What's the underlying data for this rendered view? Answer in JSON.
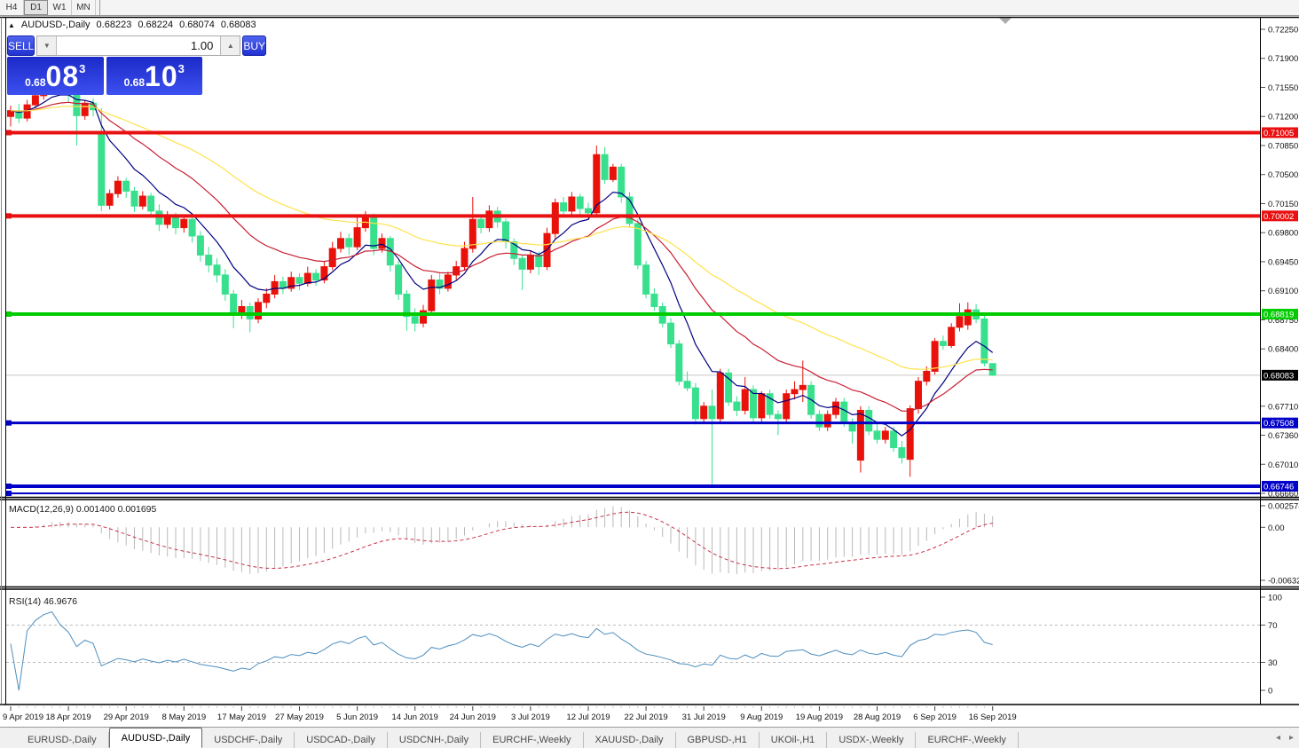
{
  "toolbar": {
    "timeframes": [
      {
        "label": "H4",
        "active": false
      },
      {
        "label": "D1",
        "active": true
      },
      {
        "label": "W1",
        "active": false
      },
      {
        "label": "MN",
        "active": false
      }
    ]
  },
  "symbol_info": {
    "marker": "▲",
    "symbol": "AUDUSD-,Daily",
    "open": "0.68223",
    "high": "0.68224",
    "low": "0.68074",
    "close": "0.68083"
  },
  "trade_panel": {
    "sell_label": "SELL",
    "buy_label": "BUY",
    "volume": "1.00",
    "spinner_down": "▼",
    "spinner_up": "▲",
    "sell_price": {
      "base": "0.68",
      "big": "08",
      "sup": "3"
    },
    "buy_price": {
      "base": "0.68",
      "big": "10",
      "sup": "3"
    }
  },
  "tabs": {
    "items": [
      "EURUSD-,Daily",
      "AUDUSD-,Daily",
      "USDCHF-,Daily",
      "USDCAD-,Daily",
      "USDCNH-,Daily",
      "EURCHF-,Weekly",
      "XAUUSD-,Daily",
      "GBPUSD-,H1",
      "UKOil-,H1",
      "USDX-,Weekly",
      "EURCHF-,Weekly"
    ],
    "active_index": 1,
    "scroll_left": "◂",
    "scroll_right": "▸"
  },
  "chart_data": {
    "type": "candlestick",
    "symbol": "AUDUSD-",
    "timeframe": "Daily",
    "title": "AUDUSD-,Daily",
    "price_axis": {
      "min": 0.6666,
      "max": 0.7225,
      "ticks": [
        "0.72250",
        "0.71900",
        "0.71550",
        "0.71200",
        "0.70850",
        "0.70500",
        "0.70150",
        "0.69800",
        "0.69450",
        "0.69100",
        "0.68750",
        "0.68400",
        "0.67710",
        "0.67360",
        "0.67010",
        "0.66660"
      ]
    },
    "date_labels": [
      "9 Apr 2019",
      "18 Apr 2019",
      "29 Apr 2019",
      "8 May 2019",
      "17 May 2019",
      "27 May 2019",
      "5 Jun 2019",
      "14 Jun 2019",
      "24 Jun 2019",
      "3 Jul 2019",
      "12 Jul 2019",
      "22 Jul 2019",
      "31 Jul 2019",
      "9 Aug 2019",
      "19 Aug 2019",
      "28 Aug 2019",
      "6 Sep 2019",
      "16 Sep 2019"
    ],
    "bars_per_label": 7,
    "colors": {
      "bull_candle": "#E8120B",
      "bear_candle": "#38E08E",
      "macd_hist": "#B9B9B9",
      "macd_signal": "#C8324B",
      "rsi_line": "#4E8FBE",
      "level_dash": "#BBBBBB",
      "current_line": "#C8C8C8"
    },
    "moving_averages": [
      {
        "name": "ma-fast",
        "period": 8,
        "color": "#000080"
      },
      {
        "name": "ma-medium",
        "period": 21,
        "color": "#C81E32"
      },
      {
        "name": "ma-slow",
        "period": 45,
        "color": "#FFE24A"
      }
    ],
    "hlines": [
      {
        "price": 0.71005,
        "label": "0.71005",
        "color": "#E81010",
        "width": 4
      },
      {
        "price": 0.70002,
        "label": "0.70002",
        "color": "#E81010",
        "width": 4
      },
      {
        "price": 0.68819,
        "label": "0.68819",
        "color": "#00CC00",
        "width": 4
      },
      {
        "price": 0.67508,
        "label": "0.67508",
        "color": "#0000C8",
        "width": 3
      },
      {
        "price": 0.66746,
        "label": "0.66746",
        "color": "#0000C8",
        "width": 4
      },
      {
        "price": 0.6666,
        "label": null,
        "color": "#0000C8",
        "width": 2
      }
    ],
    "current_price": {
      "value": 0.68083,
      "label": "0.68083",
      "badge_bg": "#000000"
    },
    "scroll_marker": "▼",
    "candles": [
      [
        0.712,
        0.7133,
        0.7108,
        0.7127
      ],
      [
        0.7127,
        0.7135,
        0.7112,
        0.7118
      ],
      [
        0.7118,
        0.714,
        0.7114,
        0.7134
      ],
      [
        0.7134,
        0.715,
        0.713,
        0.7145
      ],
      [
        0.7145,
        0.7162,
        0.714,
        0.7157
      ],
      [
        0.7157,
        0.7176,
        0.7152,
        0.7166
      ],
      [
        0.7166,
        0.7172,
        0.7148,
        0.7155
      ],
      [
        0.7155,
        0.7162,
        0.7138,
        0.7146
      ],
      [
        0.7146,
        0.7152,
        0.7085,
        0.7121
      ],
      [
        0.7121,
        0.714,
        0.7116,
        0.7136
      ],
      [
        0.7136,
        0.7142,
        0.712,
        0.7128
      ],
      [
        0.7101,
        0.713,
        0.7006,
        0.7013
      ],
      [
        0.7013,
        0.7032,
        0.7008,
        0.7027
      ],
      [
        0.7027,
        0.7048,
        0.7022,
        0.7042
      ],
      [
        0.7042,
        0.7046,
        0.7022,
        0.703
      ],
      [
        0.703,
        0.7035,
        0.7005,
        0.7012
      ],
      [
        0.7012,
        0.703,
        0.7008,
        0.7024
      ],
      [
        0.7024,
        0.7028,
        0.6998,
        0.7006
      ],
      [
        0.7006,
        0.7014,
        0.6982,
        0.699
      ],
      [
        0.699,
        0.7006,
        0.6985,
        0.7
      ],
      [
        0.7,
        0.7004,
        0.6978,
        0.6986
      ],
      [
        0.6986,
        0.7,
        0.698,
        0.6996
      ],
      [
        0.6996,
        0.6999,
        0.6968,
        0.6976
      ],
      [
        0.6976,
        0.6982,
        0.6945,
        0.6953
      ],
      [
        0.6953,
        0.6963,
        0.6932,
        0.6941
      ],
      [
        0.6941,
        0.6949,
        0.692,
        0.6929
      ],
      [
        0.6929,
        0.6936,
        0.6898,
        0.6906
      ],
      [
        0.6906,
        0.6911,
        0.6865,
        0.6881
      ],
      [
        0.6881,
        0.6899,
        0.6876,
        0.6891
      ],
      [
        0.6891,
        0.6896,
        0.686,
        0.6876
      ],
      [
        0.6876,
        0.6901,
        0.6871,
        0.6896
      ],
      [
        0.6896,
        0.6913,
        0.6889,
        0.6906
      ],
      [
        0.6906,
        0.6929,
        0.6901,
        0.6921
      ],
      [
        0.6921,
        0.6927,
        0.6906,
        0.6913
      ],
      [
        0.6913,
        0.6933,
        0.6909,
        0.6926
      ],
      [
        0.6926,
        0.6931,
        0.6911,
        0.6919
      ],
      [
        0.6919,
        0.6939,
        0.6915,
        0.6931
      ],
      [
        0.6931,
        0.6936,
        0.6916,
        0.6923
      ],
      [
        0.6923,
        0.6946,
        0.6919,
        0.6939
      ],
      [
        0.6939,
        0.6969,
        0.6935,
        0.6961
      ],
      [
        0.6961,
        0.6981,
        0.6956,
        0.6973
      ],
      [
        0.6973,
        0.6979,
        0.6953,
        0.6963
      ],
      [
        0.6963,
        0.7001,
        0.6959,
        0.6986
      ],
      [
        0.6986,
        0.7006,
        0.6981,
        0.6999
      ],
      [
        0.6999,
        0.7003,
        0.6953,
        0.6961
      ],
      [
        0.6961,
        0.6979,
        0.6956,
        0.6973
      ],
      [
        0.6973,
        0.6976,
        0.6933,
        0.6941
      ],
      [
        0.6941,
        0.6946,
        0.6899,
        0.6906
      ],
      [
        0.6906,
        0.6911,
        0.6862,
        0.6879
      ],
      [
        0.6879,
        0.6889,
        0.6861,
        0.6871
      ],
      [
        0.6871,
        0.6893,
        0.6866,
        0.6886
      ],
      [
        0.6886,
        0.6929,
        0.6881,
        0.6923
      ],
      [
        0.6923,
        0.6931,
        0.6906,
        0.6913
      ],
      [
        0.6913,
        0.6933,
        0.6909,
        0.6929
      ],
      [
        0.6929,
        0.6946,
        0.6923,
        0.6939
      ],
      [
        0.6939,
        0.6969,
        0.6935,
        0.6961
      ],
      [
        0.6961,
        0.7023,
        0.6956,
        0.6996
      ],
      [
        0.6996,
        0.7001,
        0.6979,
        0.6986
      ],
      [
        0.6986,
        0.7013,
        0.6981,
        0.7006
      ],
      [
        0.7006,
        0.7011,
        0.6986,
        0.6993
      ],
      [
        0.6993,
        0.6997,
        0.6961,
        0.6969
      ],
      [
        0.6969,
        0.6973,
        0.6941,
        0.6949
      ],
      [
        0.6949,
        0.6953,
        0.6911,
        0.6936
      ],
      [
        0.6936,
        0.6959,
        0.6931,
        0.6953
      ],
      [
        0.6953,
        0.6957,
        0.6929,
        0.6939
      ],
      [
        0.6939,
        0.6986,
        0.6935,
        0.6979
      ],
      [
        0.6979,
        0.7021,
        0.6973,
        0.7016
      ],
      [
        0.7016,
        0.7023,
        0.6999,
        0.7006
      ],
      [
        0.7006,
        0.7029,
        0.7001,
        0.7023
      ],
      [
        0.7023,
        0.7027,
        0.6999,
        0.7009
      ],
      [
        0.7009,
        0.7016,
        0.6996,
        0.7004
      ],
      [
        0.7004,
        0.7085,
        0.7,
        0.7074
      ],
      [
        0.7074,
        0.7083,
        0.7039,
        0.7044
      ],
      [
        0.7044,
        0.7063,
        0.7041,
        0.7059
      ],
      [
        0.7059,
        0.7063,
        0.7016,
        0.7023
      ],
      [
        0.7023,
        0.7029,
        0.6986,
        0.6991
      ],
      [
        0.6991,
        0.6996,
        0.6936,
        0.6941
      ],
      [
        0.6941,
        0.6946,
        0.6901,
        0.6906
      ],
      [
        0.6906,
        0.6913,
        0.6886,
        0.6891
      ],
      [
        0.6891,
        0.6896,
        0.6866,
        0.6871
      ],
      [
        0.6871,
        0.6877,
        0.6841,
        0.6846
      ],
      [
        0.6846,
        0.6851,
        0.6796,
        0.6801
      ],
      [
        0.6801,
        0.6813,
        0.6789,
        0.6793
      ],
      [
        0.6793,
        0.6799,
        0.6749,
        0.6756
      ],
      [
        0.6756,
        0.6776,
        0.6751,
        0.6771
      ],
      [
        0.6771,
        0.6791,
        0.6677,
        0.6756
      ],
      [
        0.6756,
        0.6816,
        0.6751,
        0.6811
      ],
      [
        0.6811,
        0.6816,
        0.6771,
        0.6776
      ],
      [
        0.6776,
        0.6783,
        0.6759,
        0.6766
      ],
      [
        0.6766,
        0.6806,
        0.6761,
        0.6791
      ],
      [
        0.6791,
        0.6796,
        0.6751,
        0.6757
      ],
      [
        0.6757,
        0.6789,
        0.6752,
        0.6786
      ],
      [
        0.6786,
        0.6791,
        0.6756,
        0.6761
      ],
      [
        0.6761,
        0.6766,
        0.6736,
        0.6756
      ],
      [
        0.6756,
        0.6791,
        0.6751,
        0.6786
      ],
      [
        0.6786,
        0.6801,
        0.6779,
        0.6791
      ],
      [
        0.6791,
        0.6826,
        0.6776,
        0.6796
      ],
      [
        0.6796,
        0.6801,
        0.6756,
        0.6761
      ],
      [
        0.6761,
        0.6766,
        0.6741,
        0.6746
      ],
      [
        0.6746,
        0.6766,
        0.6741,
        0.6761
      ],
      [
        0.6761,
        0.6781,
        0.6756,
        0.6776
      ],
      [
        0.6776,
        0.6781,
        0.6746,
        0.6751
      ],
      [
        0.6751,
        0.6756,
        0.6726,
        0.6741
      ],
      [
        0.6706,
        0.6771,
        0.6691,
        0.6766
      ],
      [
        0.6766,
        0.6771,
        0.6736,
        0.6741
      ],
      [
        0.6741,
        0.6753,
        0.6726,
        0.6731
      ],
      [
        0.6731,
        0.6746,
        0.6726,
        0.6741
      ],
      [
        0.6741,
        0.6746,
        0.6716,
        0.6721
      ],
      [
        0.6721,
        0.6729,
        0.6702,
        0.6709
      ],
      [
        0.6707,
        0.6772,
        0.6686,
        0.6768
      ],
      [
        0.6768,
        0.6806,
        0.6762,
        0.6801
      ],
      [
        0.6801,
        0.6819,
        0.6796,
        0.6813
      ],
      [
        0.6813,
        0.6853,
        0.6809,
        0.6849
      ],
      [
        0.6849,
        0.6856,
        0.6839,
        0.6844
      ],
      [
        0.6844,
        0.6871,
        0.6841,
        0.6866
      ],
      [
        0.6866,
        0.6895,
        0.6861,
        0.6879
      ],
      [
        0.6869,
        0.6896,
        0.6863,
        0.6887
      ],
      [
        0.6887,
        0.6894,
        0.6871,
        0.6876
      ],
      [
        0.6876,
        0.6881,
        0.6819,
        0.6823
      ],
      [
        0.68223,
        0.68224,
        0.68074,
        0.68083
      ]
    ],
    "macd": {
      "name": "MACD(12,26,9)",
      "params": [
        12,
        26,
        9
      ],
      "values": [
        "0.001400",
        "0.001695"
      ],
      "axis_ticks": [
        "0.002574",
        "0.00",
        "-0.006326"
      ],
      "range_max": 0.002574,
      "range_min": -0.006326
    },
    "rsi": {
      "name": "RSI(14)",
      "period": 14,
      "value": "46.9676",
      "axis_ticks": [
        "100",
        "70",
        "30",
        "0"
      ],
      "levels": [
        70,
        30
      ]
    }
  }
}
